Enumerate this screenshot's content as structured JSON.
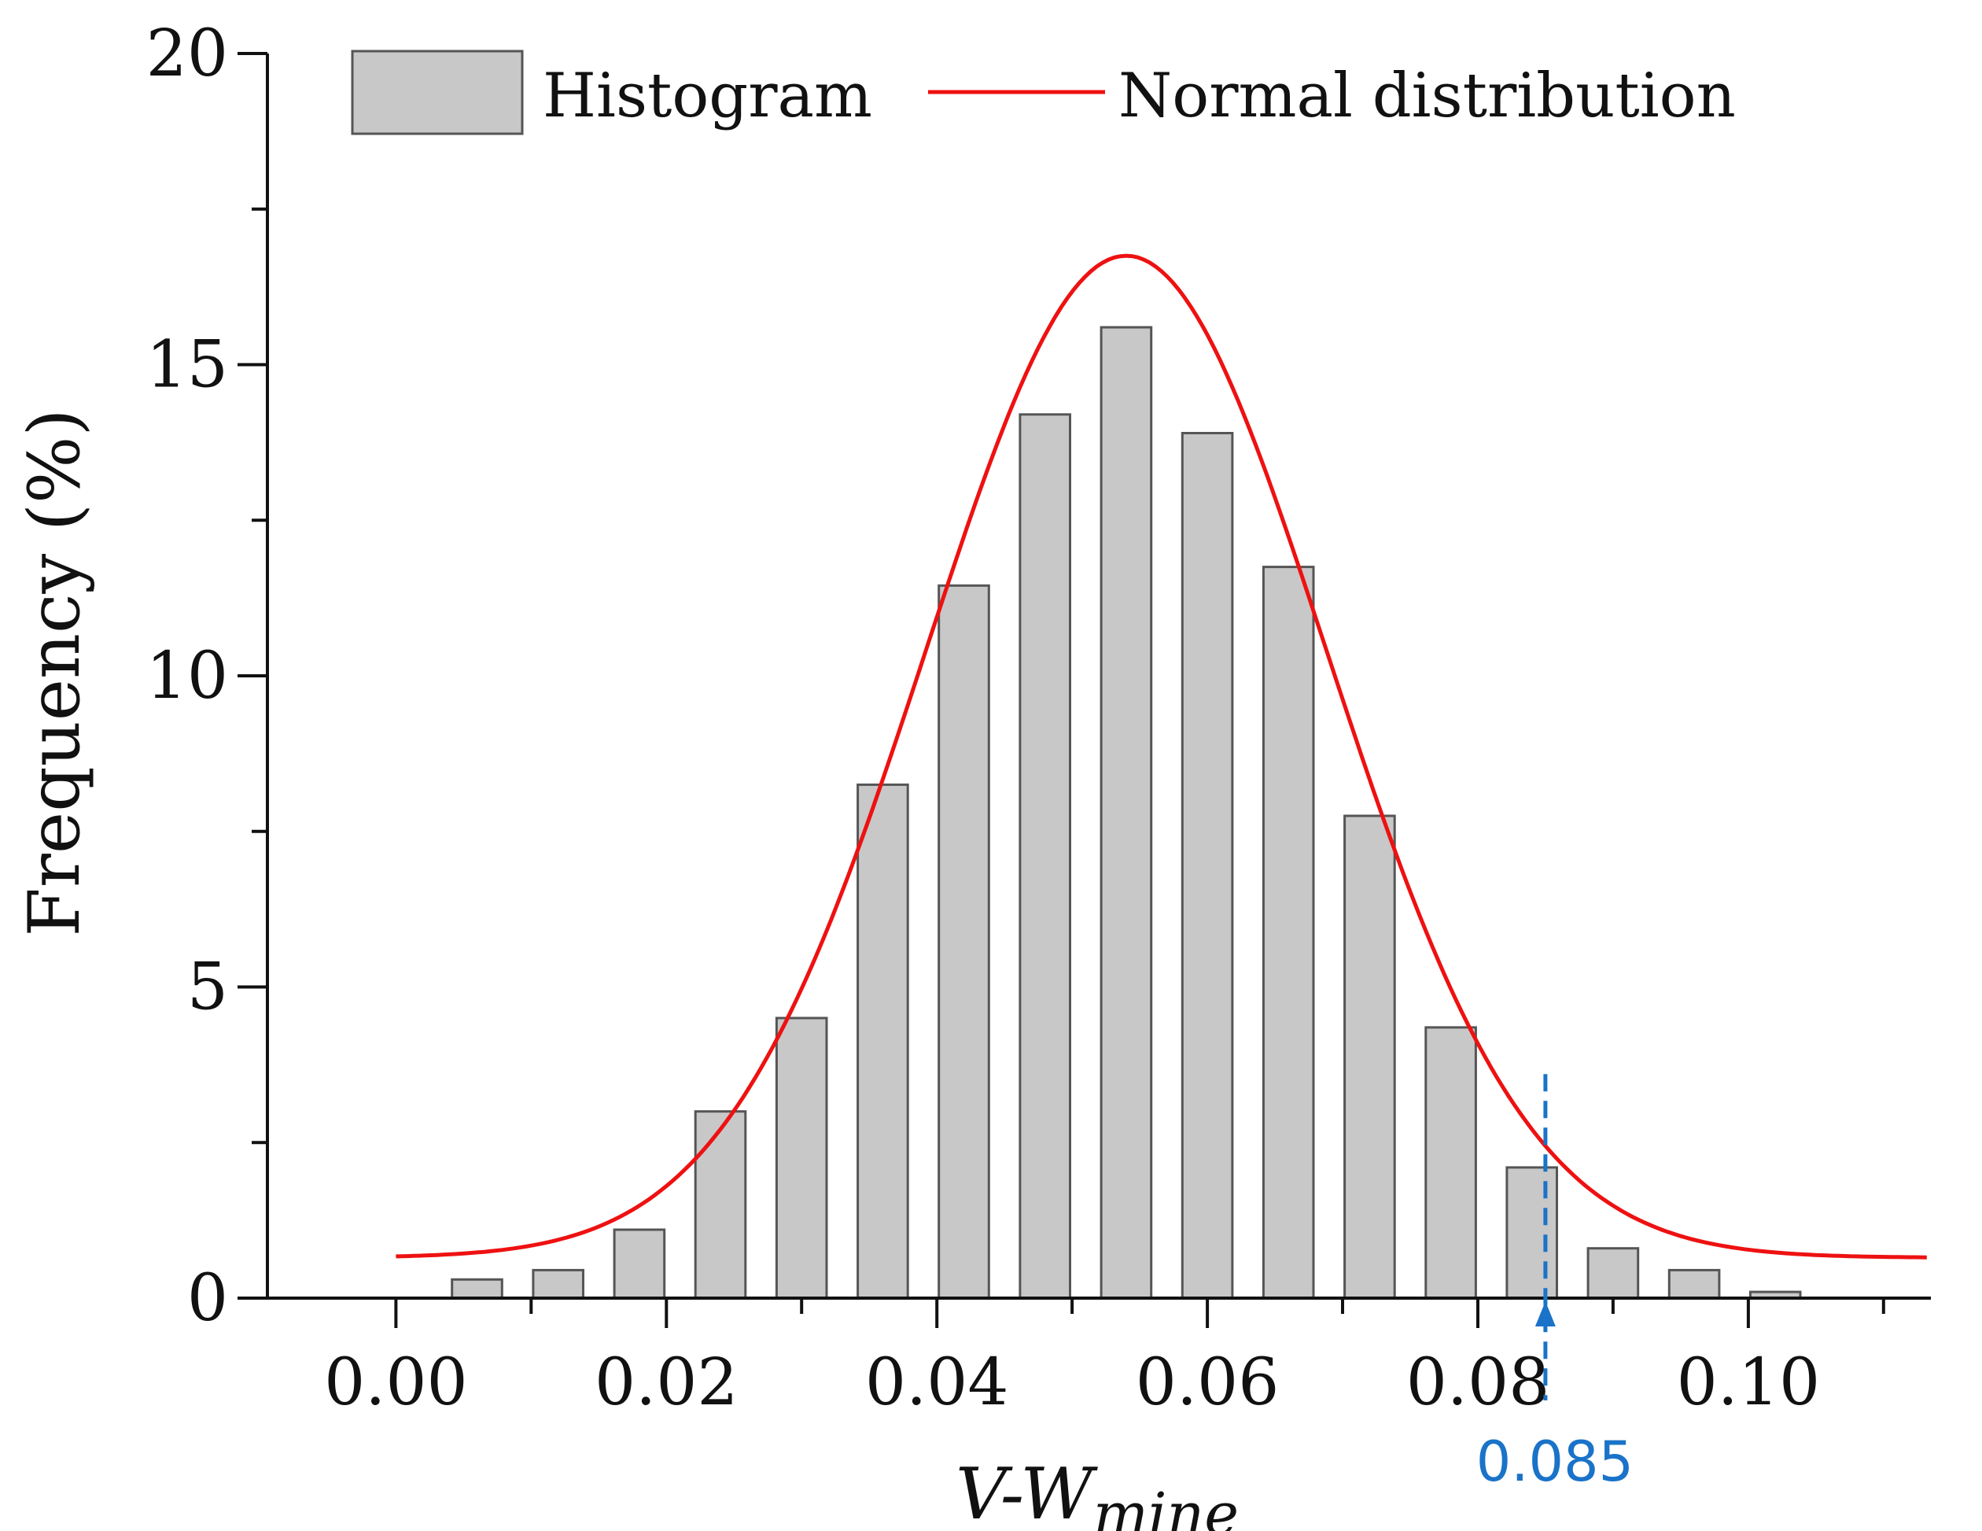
{
  "chart_data": {
    "type": "bar",
    "title": "",
    "xlabel": {
      "main": "V-W",
      "subscript": "mine"
    },
    "ylabel": "Frequency (%)",
    "xlim": [
      -0.0095,
      0.1135
    ],
    "ylim": [
      0,
      20
    ],
    "x_ticks": [
      0.0,
      0.02,
      0.04,
      0.06,
      0.08,
      0.1
    ],
    "x_tick_labels": [
      "0.00",
      "0.02",
      "0.04",
      "0.06",
      "0.08",
      "0.10"
    ],
    "y_ticks": [
      0,
      5,
      10,
      15,
      20
    ],
    "y_tick_labels": [
      "0",
      "5",
      "10",
      "15",
      "20"
    ],
    "grid": false,
    "legend_position": "top",
    "series": [
      {
        "name": "Histogram",
        "kind": "bar",
        "color": "#c8c8c8",
        "edge_color": "#555555",
        "bin_width": 0.006,
        "bar_width": 0.0037,
        "x": [
          0.006,
          0.012,
          0.018,
          0.024,
          0.03,
          0.036,
          0.042,
          0.048,
          0.054,
          0.06,
          0.066,
          0.072,
          0.078,
          0.084,
          0.09,
          0.096,
          0.102
        ],
        "values": [
          0.3,
          0.45,
          1.1,
          3.0,
          4.5,
          8.25,
          11.45,
          14.2,
          15.6,
          13.9,
          11.75,
          7.75,
          4.35,
          2.1,
          0.8,
          0.45,
          0.1
        ]
      },
      {
        "name": "Normal distribution",
        "kind": "line",
        "color": "#ee1111",
        "mean": 0.054,
        "peak": 16.75,
        "sigma": 0.0148,
        "baseline": 0.65
      }
    ],
    "annotations": [
      {
        "type": "threshold-marker",
        "x": 0.085,
        "y_top": 3.6,
        "label": "0.085",
        "color": "#1a73c8"
      }
    ]
  }
}
